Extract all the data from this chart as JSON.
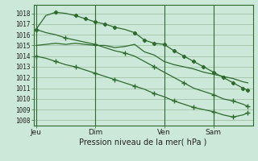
{
  "bg_color": "#cce8d8",
  "grid_color": "#99bb99",
  "line_color": "#2d6a2d",
  "title": "Pression niveau de la mer( hPa )",
  "ylabel_ticks": [
    1008,
    1009,
    1010,
    1011,
    1012,
    1013,
    1014,
    1015,
    1016,
    1017,
    1018
  ],
  "ylim": [
    1007.5,
    1018.8
  ],
  "xtick_labels": [
    "Jeu",
    "Dim",
    "Ven",
    "Sam"
  ],
  "xtick_positions": [
    0,
    12,
    26,
    36
  ],
  "xlim": [
    -0.5,
    44
  ],
  "line1_x": [
    0,
    2,
    4,
    6,
    8,
    10,
    12,
    14,
    16,
    18,
    20,
    22,
    24,
    26,
    28,
    30,
    32,
    34,
    36,
    38,
    40,
    42,
    43
  ],
  "line1_y": [
    1015.0,
    1015.1,
    1015.2,
    1015.1,
    1015.2,
    1015.1,
    1015.0,
    1015.0,
    1014.8,
    1014.9,
    1015.1,
    1014.4,
    1014.1,
    1013.5,
    1013.2,
    1013.0,
    1012.8,
    1012.5,
    1012.3,
    1012.1,
    1011.9,
    1011.6,
    1011.5
  ],
  "line2_x": [
    0,
    2,
    4,
    6,
    8,
    10,
    12,
    14,
    16,
    18,
    20,
    22,
    24,
    26,
    28,
    30,
    32,
    34,
    36,
    38,
    40,
    42,
    43
  ],
  "line2_y": [
    1016.5,
    1017.8,
    1018.1,
    1018.0,
    1017.8,
    1017.5,
    1017.2,
    1017.0,
    1016.7,
    1016.5,
    1016.2,
    1015.5,
    1015.2,
    1015.1,
    1014.5,
    1014.0,
    1013.5,
    1013.0,
    1012.5,
    1012.0,
    1011.5,
    1011.0,
    1010.8
  ],
  "line2_marker_x": [
    0,
    4,
    8,
    10,
    12,
    14,
    16,
    20,
    22,
    24,
    26,
    28,
    30,
    32,
    34,
    36,
    38,
    40,
    42,
    43
  ],
  "line2_marker_y": [
    1016.5,
    1018.1,
    1017.8,
    1017.5,
    1017.2,
    1017.0,
    1016.7,
    1016.2,
    1015.5,
    1015.2,
    1015.1,
    1014.5,
    1014.0,
    1013.5,
    1013.0,
    1012.5,
    1012.0,
    1011.5,
    1011.0,
    1010.8
  ],
  "line3_x": [
    0,
    2,
    4,
    6,
    8,
    10,
    12,
    14,
    16,
    18,
    20,
    22,
    24,
    26,
    28,
    30,
    32,
    34,
    36,
    38,
    40,
    42,
    43
  ],
  "line3_y": [
    1014.0,
    1013.8,
    1013.5,
    1013.2,
    1013.0,
    1012.7,
    1012.4,
    1012.1,
    1011.8,
    1011.5,
    1011.2,
    1010.9,
    1010.5,
    1010.2,
    1009.8,
    1009.5,
    1009.2,
    1009.0,
    1008.8,
    1008.5,
    1008.3,
    1008.5,
    1008.7
  ],
  "line3_marker_x": [
    0,
    4,
    8,
    12,
    16,
    20,
    24,
    28,
    32,
    36,
    40,
    43
  ],
  "line3_marker_y": [
    1014.0,
    1013.5,
    1013.0,
    1012.4,
    1011.8,
    1011.2,
    1010.5,
    1009.8,
    1009.2,
    1008.8,
    1008.3,
    1008.7
  ],
  "line4_x": [
    0,
    2,
    4,
    6,
    8,
    10,
    12,
    14,
    16,
    18,
    20,
    22,
    24,
    26,
    28,
    30,
    32,
    34,
    36,
    38,
    40,
    42,
    43
  ],
  "line4_y": [
    1016.5,
    1016.2,
    1016.0,
    1015.7,
    1015.5,
    1015.3,
    1015.1,
    1014.8,
    1014.5,
    1014.3,
    1014.0,
    1013.5,
    1013.0,
    1012.5,
    1012.0,
    1011.5,
    1011.0,
    1010.7,
    1010.4,
    1010.0,
    1009.8,
    1009.5,
    1009.3
  ],
  "line4_marker_x": [
    0,
    6,
    12,
    18,
    24,
    30,
    36,
    40,
    43
  ],
  "line4_marker_y": [
    1016.5,
    1015.7,
    1015.1,
    1014.3,
    1013.0,
    1011.5,
    1010.4,
    1009.8,
    1009.3
  ]
}
